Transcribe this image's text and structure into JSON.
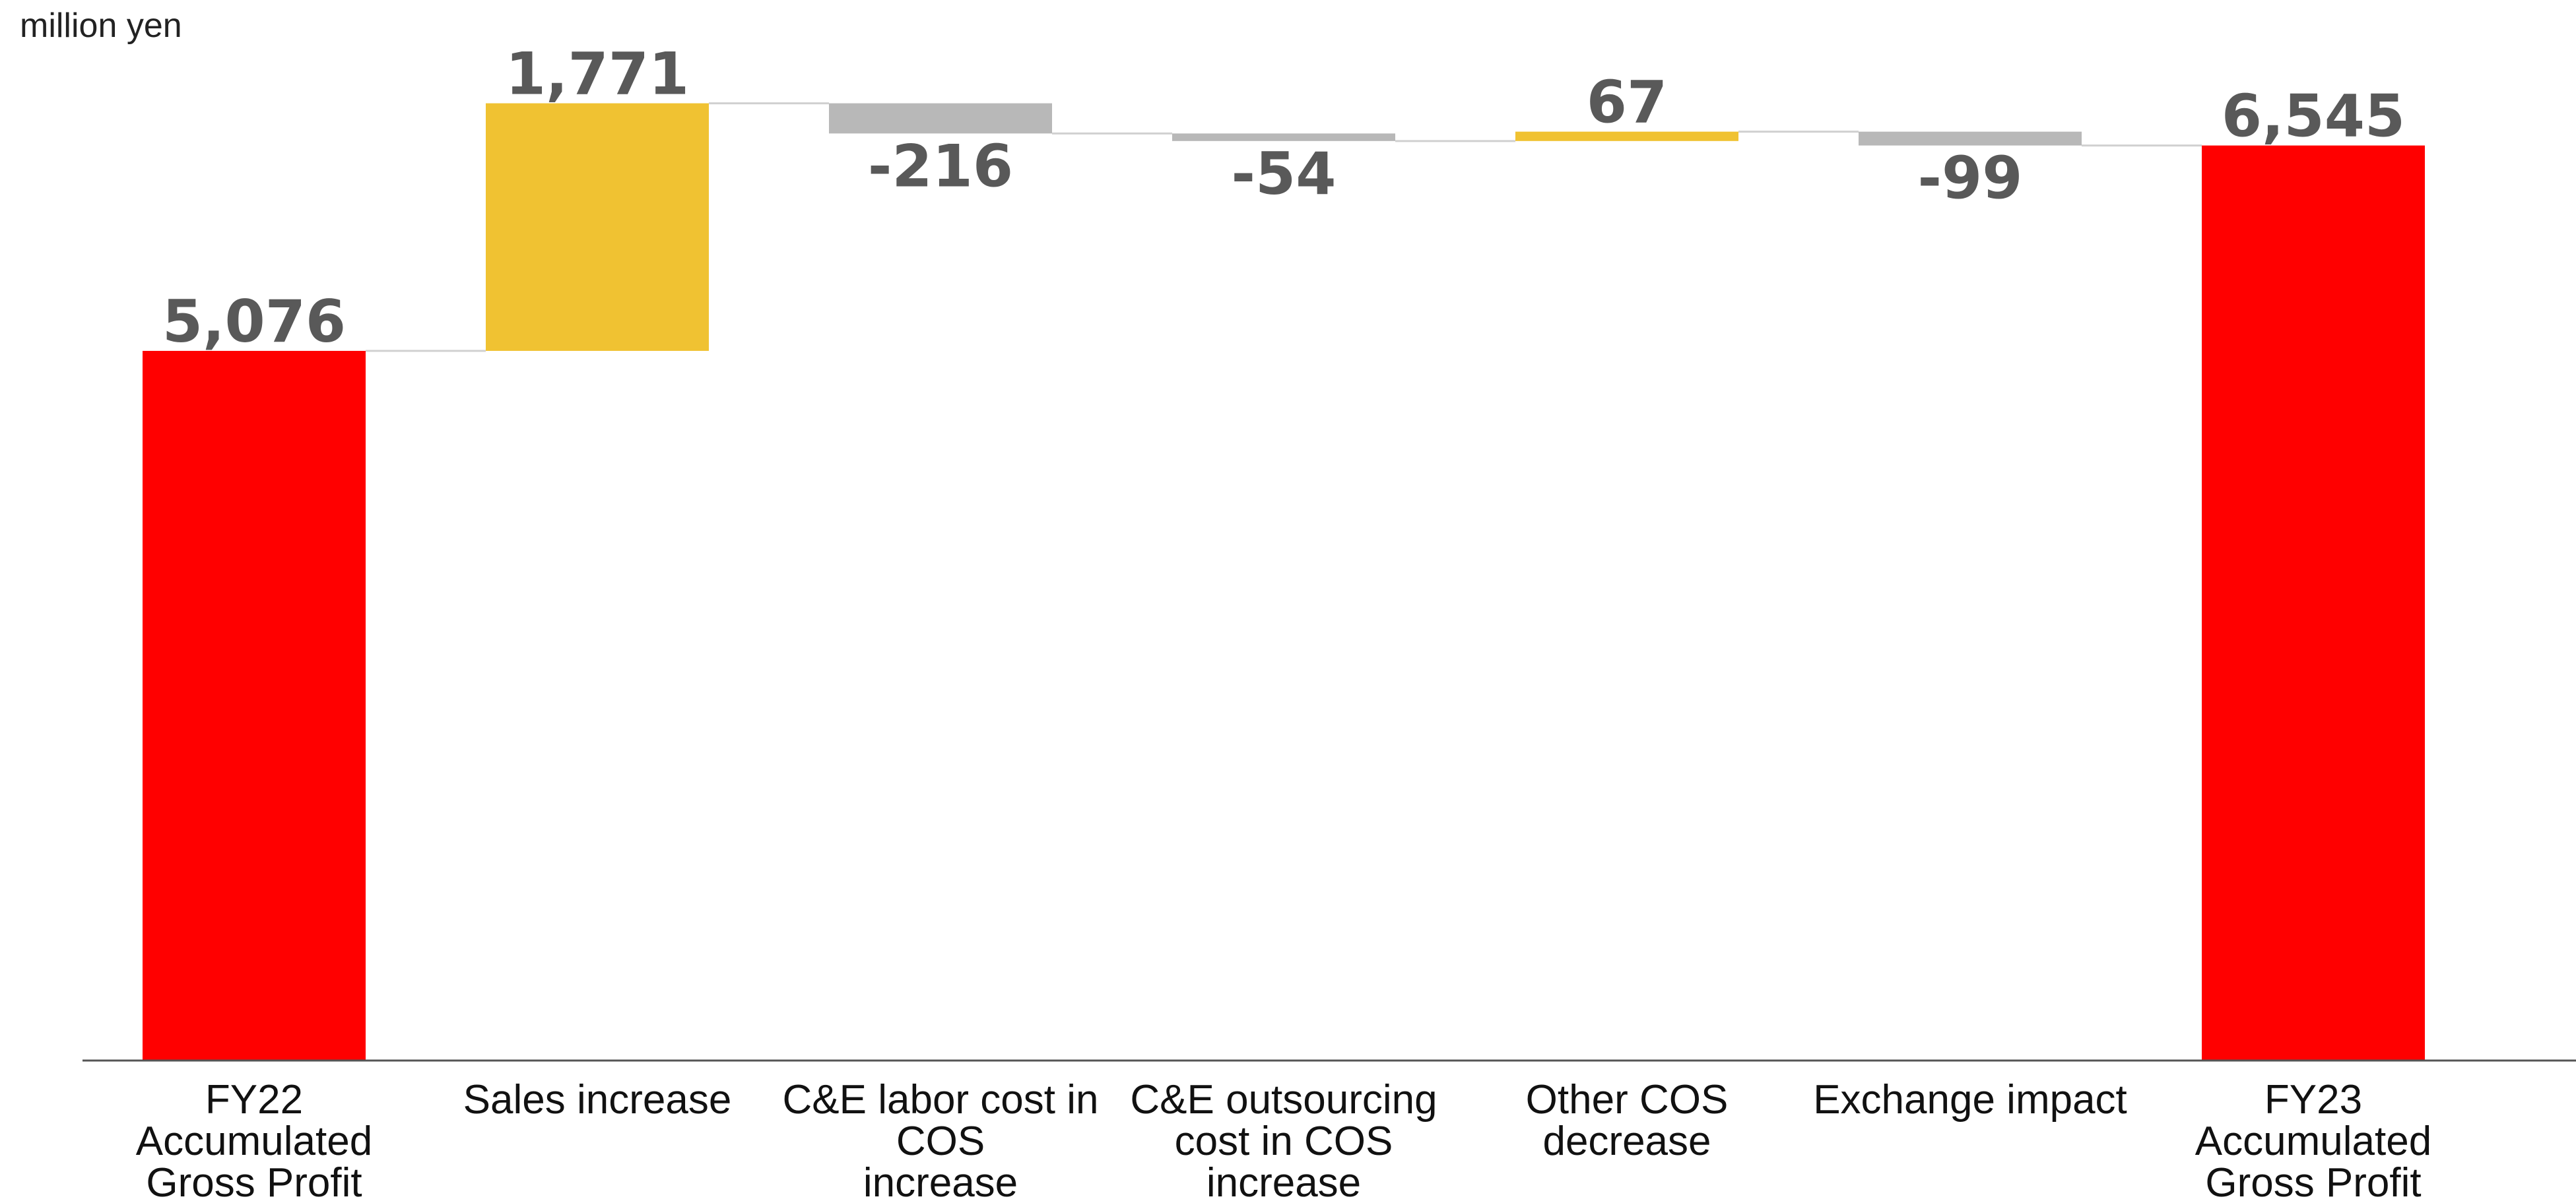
{
  "chart_data": {
    "type": "bar",
    "subtype": "waterfall",
    "unit_label": "million yen",
    "title": "",
    "xlabel": "",
    "ylabel": "",
    "ylim": [
      0,
      7260
    ],
    "grid": false,
    "legend": "none",
    "categories": [
      [
        "FY22",
        "Accumulated",
        "Gross Profit"
      ],
      [
        "Sales increase"
      ],
      [
        "C&E labor cost in",
        "COS",
        "increase"
      ],
      [
        "C&E outsourcing",
        "cost in COS",
        "increase"
      ],
      [
        "Other COS",
        "decrease"
      ],
      [
        "Exchange impact"
      ],
      [
        "FY23",
        "Accumulated",
        "Gross Profit"
      ]
    ],
    "values": [
      5076,
      1771,
      -216,
      -54,
      67,
      -99,
      6545
    ],
    "value_labels": [
      "5,076",
      "1,771",
      "-216",
      "-54",
      "67",
      "-99",
      "6,545"
    ],
    "bar_kinds": [
      "total",
      "delta",
      "delta",
      "delta",
      "delta",
      "delta",
      "total"
    ],
    "colors": {
      "total": "#ff0000",
      "increase": "#f0c232",
      "decrease": "#b8b8b8",
      "connector": "#d0d0d0",
      "axis": "#555555"
    }
  }
}
